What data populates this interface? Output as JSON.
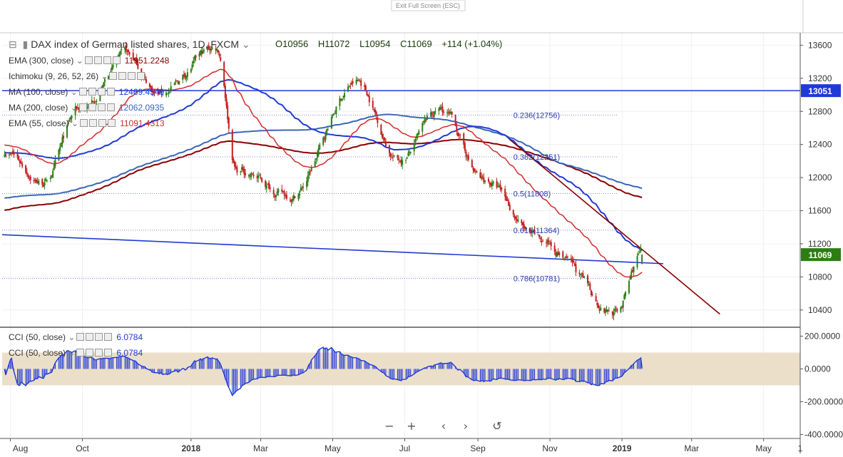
{
  "top_bar": {
    "exit_label": "Exit Full Screen (ESC)"
  },
  "header": {
    "title": "DAX index of German listed shares, 1D, FXCM",
    "open": "O10956",
    "high": "H11072",
    "low": "L10954",
    "close": "C11069",
    "change": "+114 (+1.04%)"
  },
  "indicators": [
    {
      "label": "EMA (300, close)",
      "value": "11951.2248",
      "color": "#8b0000"
    },
    {
      "label": "Ichimoku (9, 26, 52, 26)",
      "value": "",
      "color": "#555555"
    },
    {
      "label": "MA (100, close)",
      "value": "12469.4549",
      "color": "#1f3ad6"
    },
    {
      "label": "MA (200, close)",
      "value": "12062.0935",
      "color": "#3a66b5"
    },
    {
      "label": "EMA (55, close)",
      "value": "11091.4313",
      "color": "#d42a2a"
    }
  ],
  "cci_legends": [
    {
      "label": "CCI (50, close)",
      "value": "6.0784",
      "color": "#1f3ad6"
    },
    {
      "label": "CCI (50, close)",
      "value": "6.0784",
      "color": "#1f3ad6"
    }
  ],
  "price_badges": {
    "resistance": "13051",
    "last": "11069"
  },
  "fibonacci": [
    {
      "label": "0.236(12756)",
      "value": 12756
    },
    {
      "label": "0.382(12251)",
      "value": 12251
    },
    {
      "label": "0.5(11808)",
      "value": 11808
    },
    {
      "label": "0.618(11364)",
      "value": 11364
    },
    {
      "label": "0.786(10781)",
      "value": 10781
    }
  ],
  "x_axis_labels": [
    "Aug",
    "Oct",
    "2018",
    "Mar",
    "May",
    "Jul",
    "Sep",
    "Nov",
    "2019",
    "Mar",
    "May",
    "1"
  ],
  "y_axis_labels": [
    "13600",
    "13200",
    "12800",
    "12400",
    "12000",
    "11600",
    "11200",
    "10800",
    "10400"
  ],
  "cci_axis_labels": [
    "200.0000",
    "0.0000",
    "-200.0000",
    "-400.0000"
  ],
  "controls": [
    {
      "name": "zoom-out",
      "glyph": "−"
    },
    {
      "name": "zoom-in",
      "glyph": "+"
    },
    {
      "name": "scroll-left",
      "glyph": "‹"
    },
    {
      "name": "scroll-right",
      "glyph": "›"
    },
    {
      "name": "reset",
      "glyph": "↺"
    }
  ],
  "colors": {
    "up": "#2e7d14",
    "down": "#c41e1e",
    "ema55": "#d42a2a",
    "ema300": "#8b0000",
    "ma100": "#1f3ad6",
    "ma200": "#3a66b5",
    "trend": "#8b0000",
    "channel": "#1f3ad6",
    "cci": "#1f3ad6",
    "cci_band": "#ecdfca"
  },
  "chart_data": [
    {
      "type": "candlestick",
      "title": "DAX index of German listed shares, 1D, FXCM",
      "ylim": [
        10200,
        13750
      ],
      "x_range": [
        "2017-07-25",
        "2019-06-01"
      ],
      "key_points": [
        {
          "date": "2017-07-27",
          "close": 12320
        },
        {
          "date": "2017-08-29",
          "close": 11960
        },
        {
          "date": "2017-09-30",
          "close": 12830
        },
        {
          "date": "2017-11-07",
          "close": 13460
        },
        {
          "date": "2017-12-05",
          "close": 13020
        },
        {
          "date": "2018-01-23",
          "close": 13560
        },
        {
          "date": "2018-02-09",
          "close": 12100
        },
        {
          "date": "2018-03-26",
          "close": 11790
        },
        {
          "date": "2018-05-22",
          "close": 13150
        },
        {
          "date": "2018-06-26",
          "close": 12220
        },
        {
          "date": "2018-08-01",
          "close": 12800
        },
        {
          "date": "2018-09-07",
          "close": 11950
        },
        {
          "date": "2018-10-26",
          "close": 11200
        },
        {
          "date": "2018-12-27",
          "close": 10380
        },
        {
          "date": "2019-01-18",
          "close": 11069
        }
      ],
      "horizontal_lines": [
        {
          "label": "13051",
          "value": 13051
        }
      ],
      "trendlines": [
        {
          "name": "channel",
          "from": [
            "2017-07-25",
            11310
          ],
          "to": [
            "2019-02-05",
            10960
          ]
        },
        {
          "name": "downtrend",
          "from": [
            "2018-09-28",
            12460
          ],
          "to": [
            "2019-03-25",
            10350
          ]
        }
      ]
    },
    {
      "type": "line",
      "title": "CCI (50, close)",
      "ylim": [
        -420,
        250
      ],
      "band": [
        -100,
        100
      ],
      "last_value": 6.0784
    }
  ]
}
